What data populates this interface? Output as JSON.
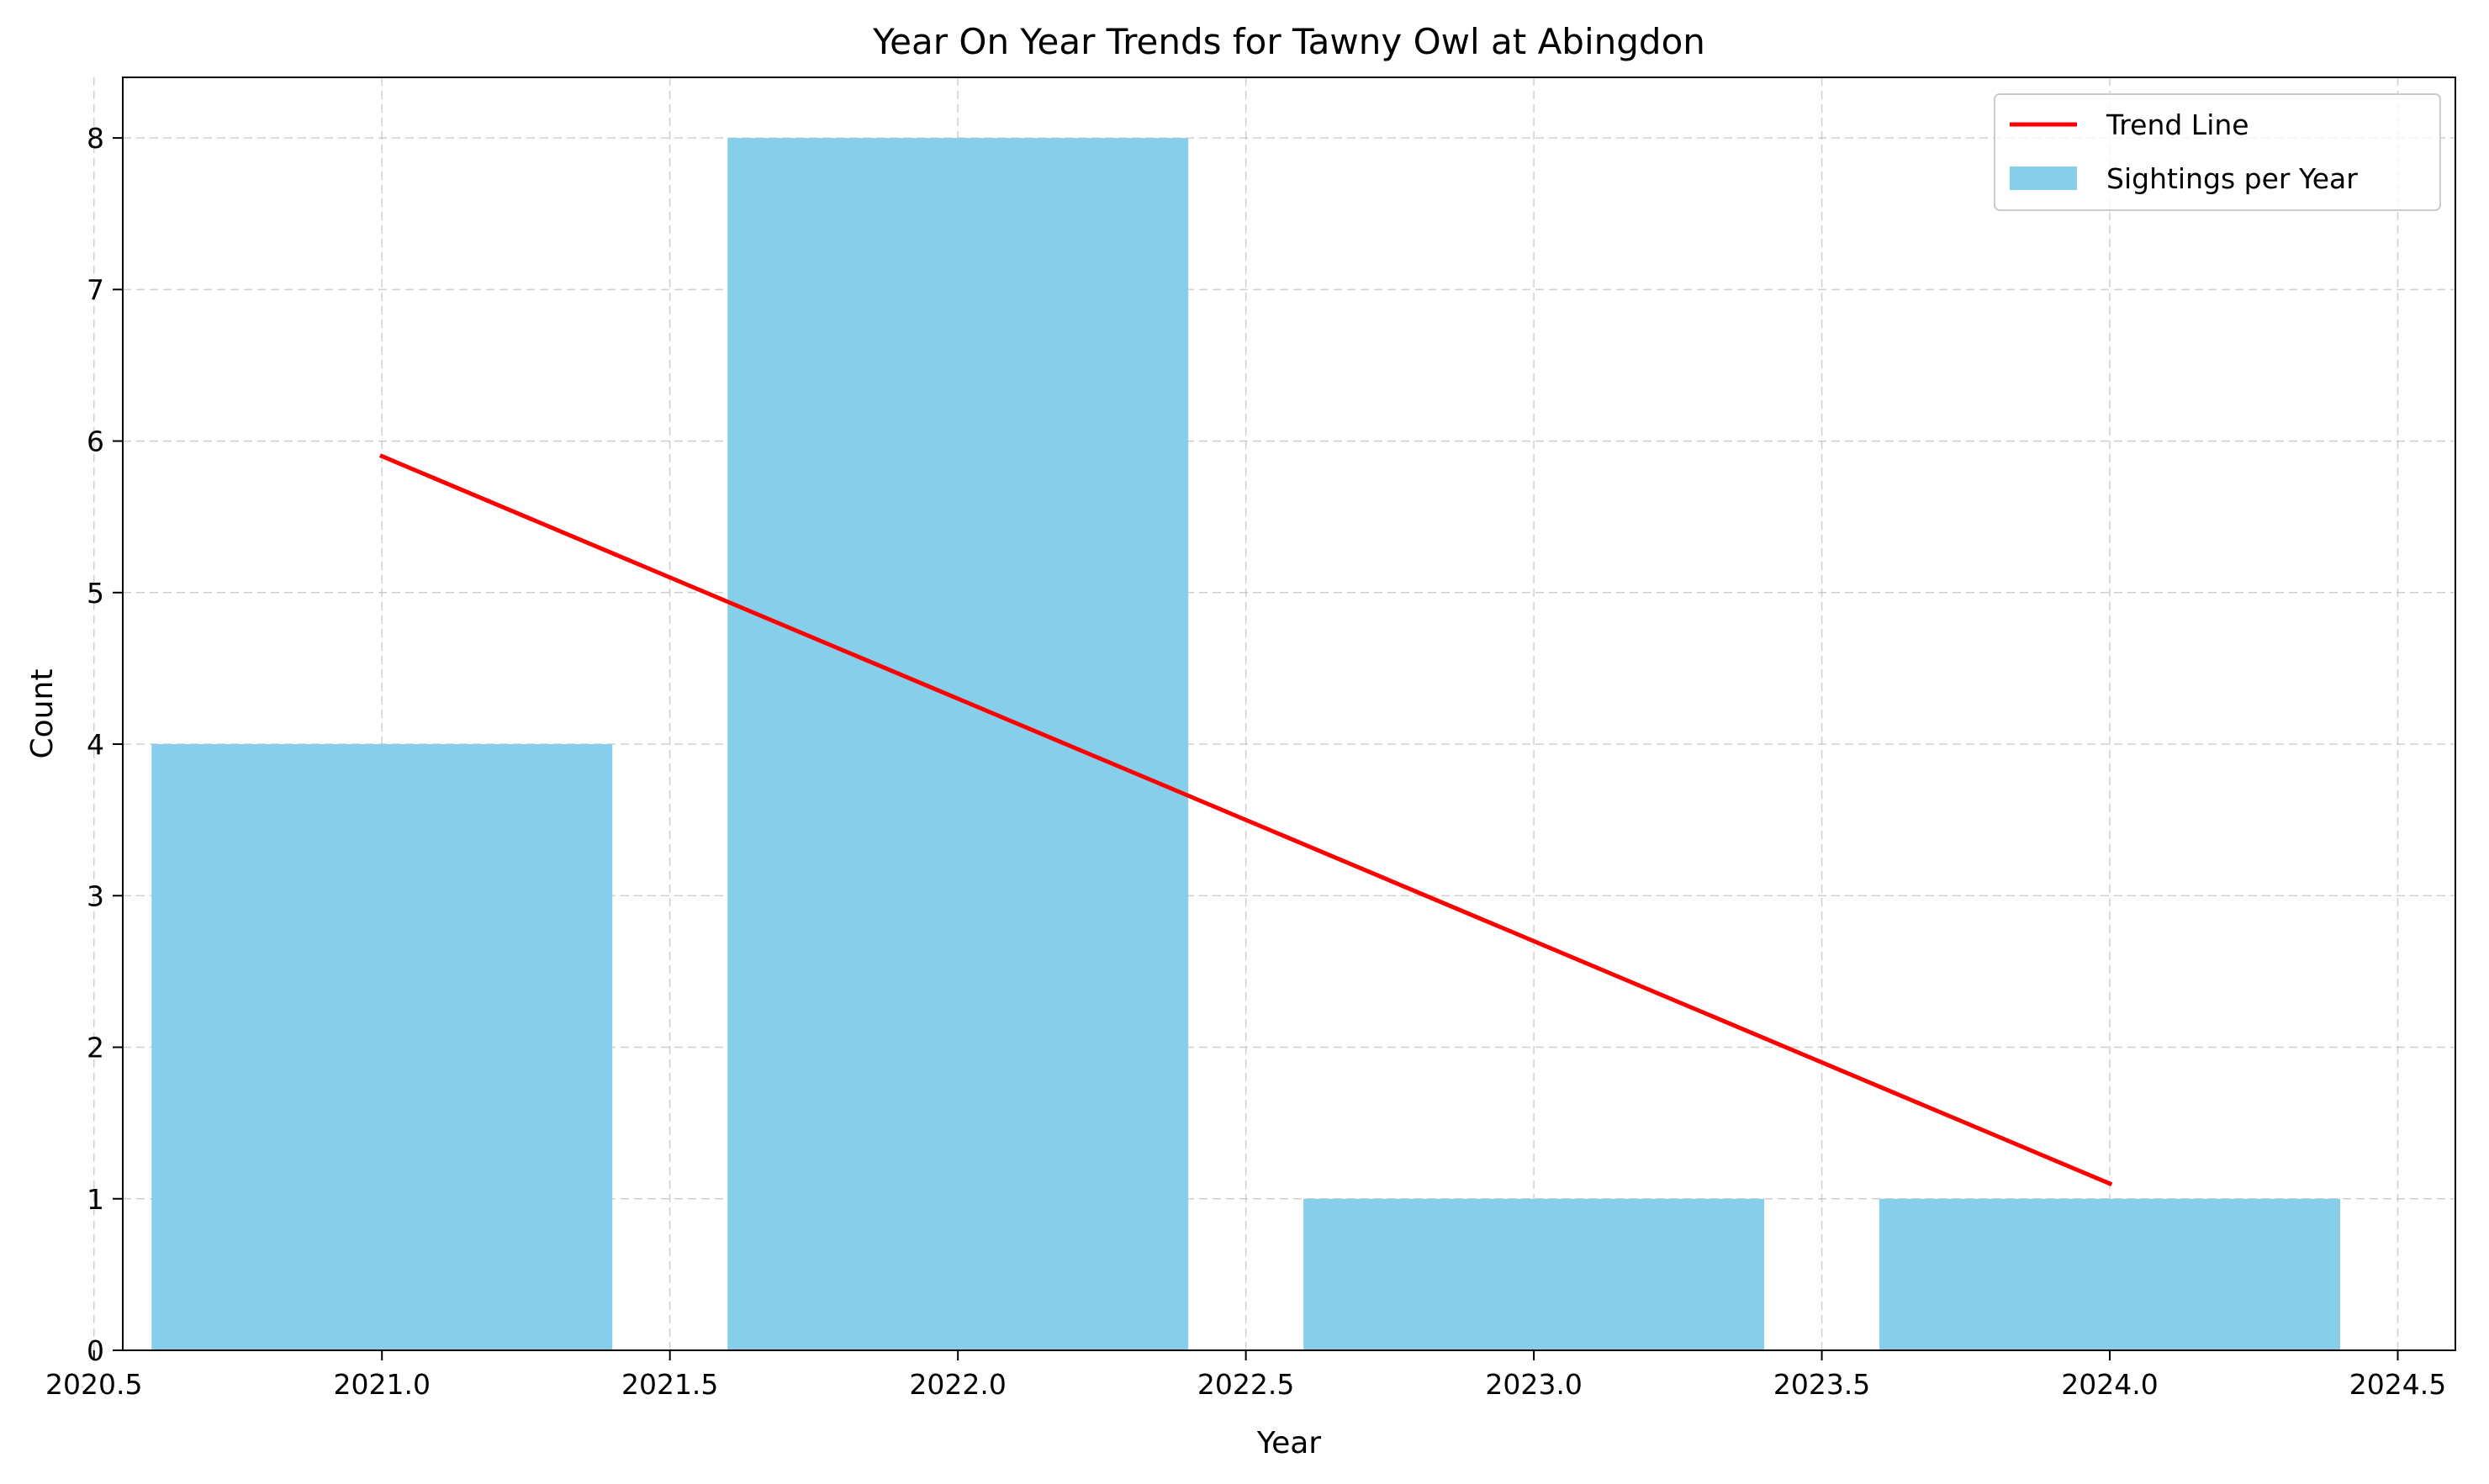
{
  "chart_data": {
    "type": "bar",
    "title": "Year On Year Trends for Tawny Owl at Abingdon",
    "xlabel": "Year",
    "ylabel": "Count",
    "xlim": [
      2020.55,
      2024.6
    ],
    "ylim": [
      0,
      8.4
    ],
    "xticks": [
      2020.5,
      2021.0,
      2021.5,
      2022.0,
      2022.5,
      2023.0,
      2023.5,
      2024.0,
      2024.5
    ],
    "xtick_labels": [
      "2020.5",
      "2021.0",
      "2021.5",
      "2022.0",
      "2022.5",
      "2023.0",
      "2023.5",
      "2024.0",
      "2024.5"
    ],
    "yticks": [
      0,
      1,
      2,
      3,
      4,
      5,
      6,
      7,
      8
    ],
    "ytick_labels": [
      "0",
      "1",
      "2",
      "3",
      "4",
      "5",
      "6",
      "7",
      "8"
    ],
    "grid": true,
    "legend_position": "top-right",
    "bar_width": 0.8,
    "series": [
      {
        "name": "Sightings per Year",
        "kind": "bar",
        "color": "#87CEEB",
        "x": [
          2021,
          2022,
          2023,
          2024
        ],
        "values": [
          4,
          8,
          1,
          1
        ]
      },
      {
        "name": "Trend Line",
        "kind": "line",
        "color": "#ff0000",
        "x": [
          2021,
          2024
        ],
        "values": [
          5.9,
          1.1
        ]
      }
    ]
  }
}
